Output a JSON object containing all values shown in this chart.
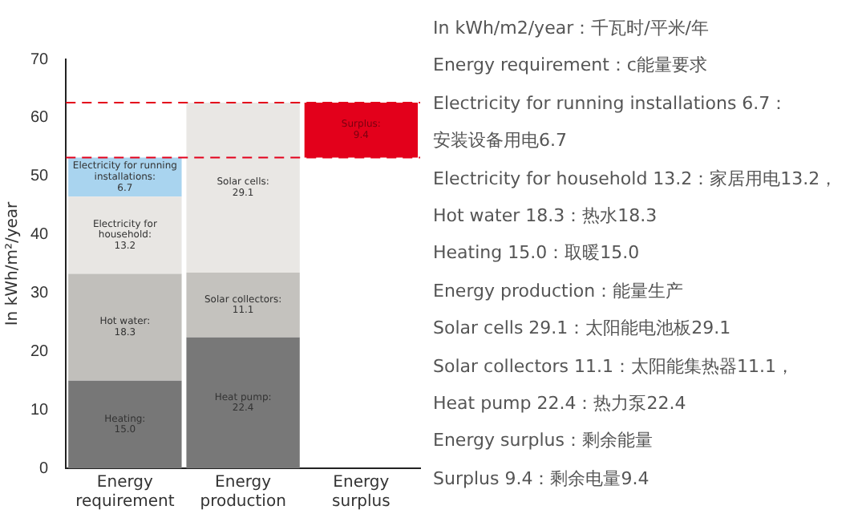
{
  "chart_data": {
    "type": "bar",
    "stacked": true,
    "ylabel": "In kWh/m²/year",
    "categories": [
      "Energy requirement",
      "Energy production",
      "Energy surplus"
    ],
    "ylim": [
      0,
      70
    ],
    "yticks": [
      0,
      10,
      20,
      30,
      40,
      50,
      60,
      70
    ],
    "grid": false,
    "legend": false,
    "series": [
      {
        "name": "Heating:",
        "color": "#777777",
        "values": [
          15.0,
          null,
          null
        ],
        "value_labels": [
          "15.0",
          null,
          null
        ]
      },
      {
        "name": "Hot water:",
        "color": "#c1bfbb",
        "values": [
          18.3,
          null,
          null
        ],
        "value_labels": [
          "18.3",
          null,
          null
        ]
      },
      {
        "name": "Electricity for household:",
        "color": "#e8e6e3",
        "values": [
          13.2,
          null,
          null
        ],
        "value_labels": [
          "13.2",
          null,
          null
        ]
      },
      {
        "name": "Electricity for running installations:",
        "color": "#a9d4ef",
        "values": [
          6.7,
          null,
          null
        ],
        "value_labels": [
          "6.7",
          null,
          null
        ]
      },
      {
        "name": "Heat pump:",
        "color": "#787878",
        "values": [
          null,
          22.4,
          null
        ],
        "value_labels": [
          null,
          "22.4",
          null
        ]
      },
      {
        "name": "Solar collectors:",
        "color": "#c4c2be",
        "values": [
          null,
          11.1,
          null
        ],
        "value_labels": [
          null,
          "11.1",
          null
        ]
      },
      {
        "name": "Solar cells:",
        "color": "#e9e7e4",
        "values": [
          null,
          29.1,
          null
        ],
        "value_labels": [
          null,
          "29.1",
          null
        ]
      },
      {
        "name": "Surplus:",
        "color": "#e3001b",
        "values": [
          null,
          null,
          9.4
        ],
        "base": [
          null,
          null,
          53.2
        ],
        "value_labels": [
          null,
          null,
          "9.4"
        ]
      }
    ],
    "ref_lines": [
      {
        "axis": "y",
        "value": 53.2,
        "color": "#e3001b",
        "line_style": "dashed"
      },
      {
        "axis": "y",
        "value": 62.6,
        "color": "#e3001b",
        "line_style": "dashed"
      }
    ],
    "annotations": [
      "In kWh/m2/year：千瓦时/平米/年",
      "Energy requirement：c能量要求",
      "Electricity for running installations 6.7：",
      "安装设备用电6.7",
      "Electricity for household 13.2：家居用电13.2，",
      "Hot water 18.3：热水18.3",
      "Heating 15.0：取暖15.0",
      "Energy production：能量生产",
      "Solar cells 29.1：太阳能电池板29.1",
      "Solar collectors 11.1：太阳能集热器11.1，",
      "Heat pump 22.4：热力泵22.4",
      "Energy surplus：剩余能量",
      "Surplus 9.4：剩余电量9.4"
    ]
  }
}
